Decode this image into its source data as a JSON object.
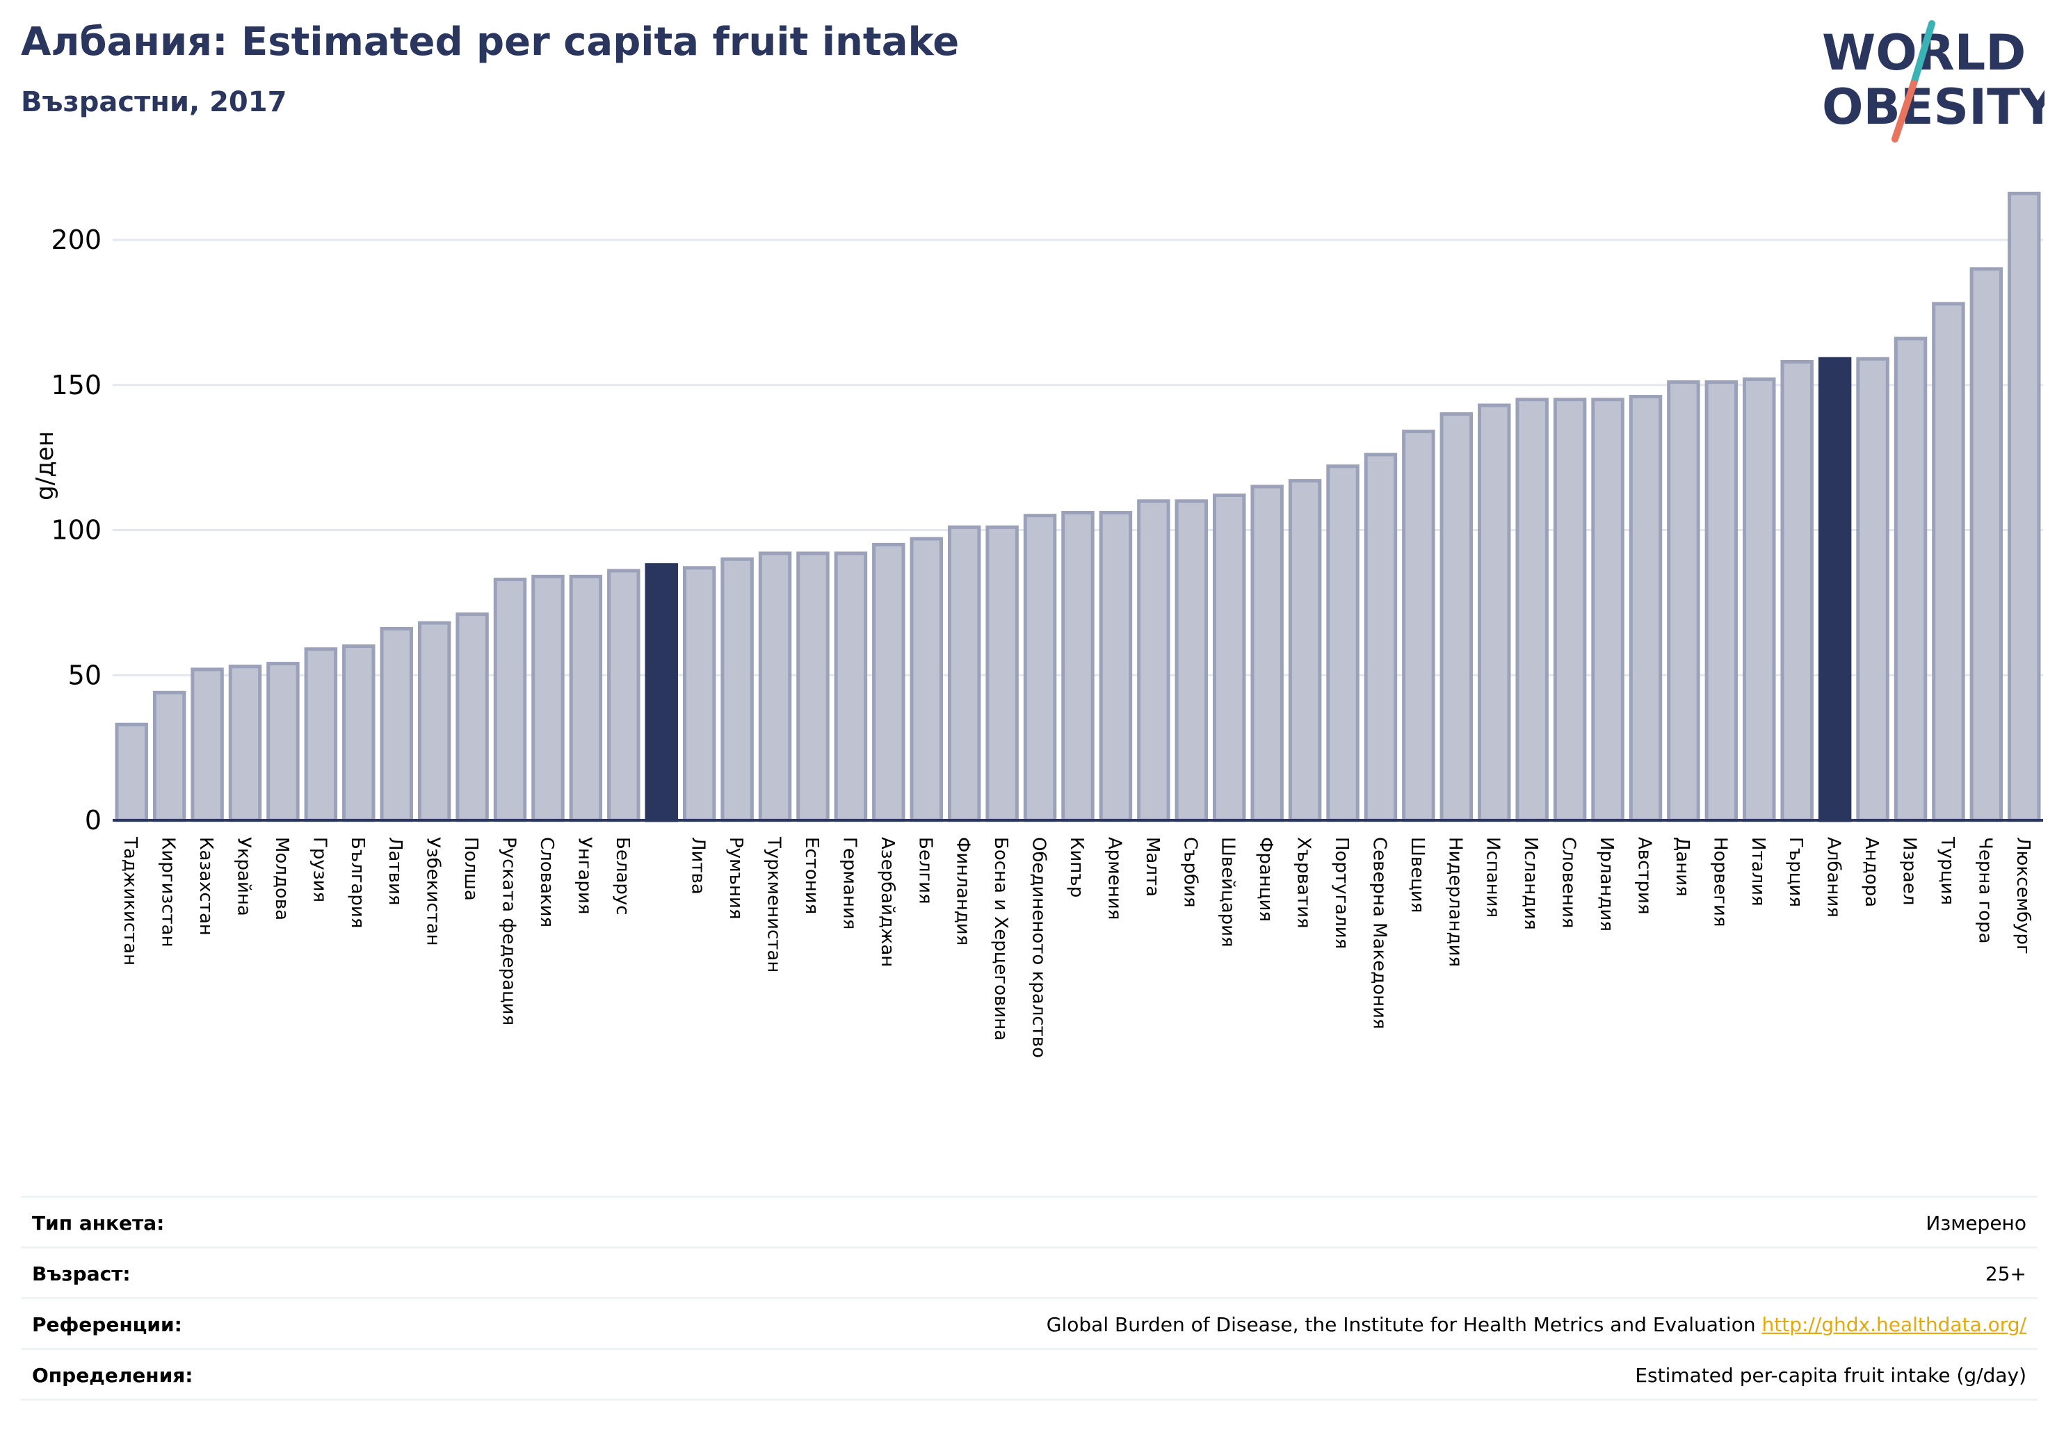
{
  "header": {
    "title": "Албания: Estimated per capita fruit intake",
    "subtitle": "Възрастни, 2017"
  },
  "logo": {
    "line1": "WORLD",
    "line2": "OBESITY",
    "colors": {
      "text": "#2a365e",
      "slash_top": "#3bb3b5",
      "slash_bottom": "#e8735e"
    }
  },
  "colors": {
    "bar": "#bfc3d1",
    "bar_border": "#9ba1b9",
    "highlight": "#2a365e",
    "grid": "#e4e8ee",
    "axis": "#2a365e"
  },
  "chart_data": {
    "type": "bar",
    "ylabel": "g/ден",
    "ylim": [
      0,
      220
    ],
    "yticks": [
      0,
      50,
      100,
      150,
      200
    ],
    "grid": true,
    "categories": [
      "Таджикистан",
      "Киргизстан",
      "Казахстан",
      "Украйна",
      "Молдова",
      "Грузия",
      "България",
      "Латвия",
      "Узбекистан",
      "Полша",
      "Руската федерация",
      "Словакия",
      "Унгария",
      "Беларус",
      "",
      "Литва",
      "Румъния",
      "Туркменистан",
      "Естония",
      "Германия",
      "Азербайджан",
      "Белгия",
      "Финландия",
      "Босна и Херцеговина",
      "Обединеното кралство",
      "Кипър",
      "Армения",
      "Малта",
      "Сърбия",
      "Швейцария",
      "Франция",
      "Хърватия",
      "Португалия",
      "Северна Македония",
      "Швеция",
      "Нидерландия",
      "Испания",
      "Исландия",
      "Словения",
      "Ирландия",
      "Австрия",
      "Дания",
      "Норвегия",
      "Италия",
      "Гърция",
      "Албания",
      "Андора",
      "Израел",
      "Турция",
      "Черна гора",
      "Люксембург"
    ],
    "values": [
      33,
      44,
      52,
      53,
      54,
      59,
      60,
      66,
      68,
      71,
      83,
      84,
      84,
      86,
      88,
      87,
      90,
      92,
      92,
      92,
      95,
      97,
      101,
      101,
      105,
      106,
      106,
      110,
      110,
      112,
      115,
      117,
      122,
      126,
      134,
      140,
      143,
      145,
      145,
      145,
      146,
      151,
      151,
      152,
      158,
      159,
      159,
      166,
      178,
      190,
      216
    ],
    "highlight": [
      14,
      45
    ]
  },
  "info": [
    {
      "label": "Тип анкета:",
      "value": "Измерено"
    },
    {
      "label": "Възраст:",
      "value": "25+"
    },
    {
      "label": "Референции:",
      "value": "Global Burden of Disease, the Institute for Health Metrics and Evaluation",
      "link": "http://ghdx.healthdata.org/"
    },
    {
      "label": "Определения:",
      "value": "Estimated per-capita fruit intake (g/day)"
    }
  ]
}
